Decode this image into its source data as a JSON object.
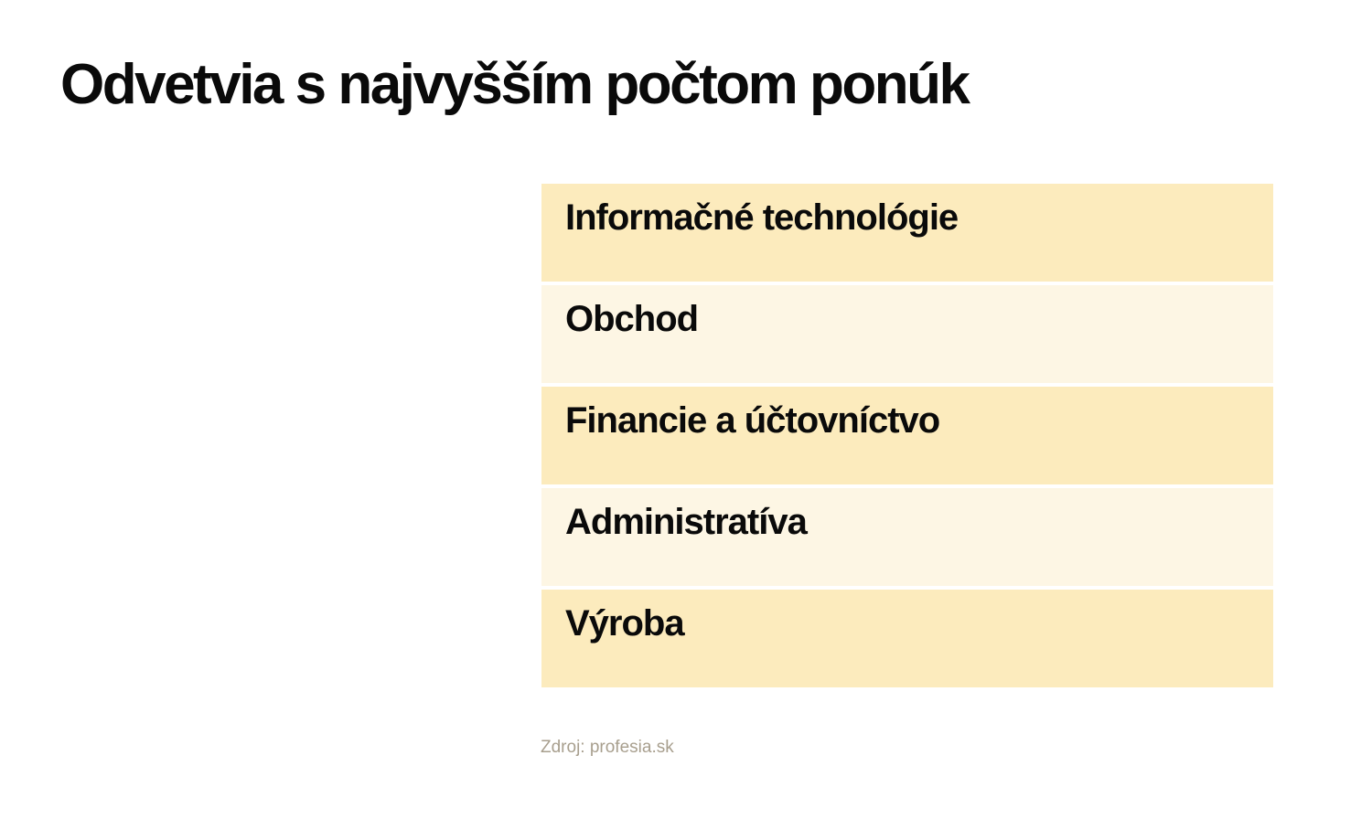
{
  "slide": {
    "title": "Odvetvia s najvyšším počtom ponúk",
    "source": "Zdroj: profesia.sk"
  },
  "table": {
    "rows": [
      {
        "label": "Informačné technológie"
      },
      {
        "label": "Obchod"
      },
      {
        "label": "Financie a účtovníctvo"
      },
      {
        "label": "Administratíva"
      },
      {
        "label": "Výroba"
      }
    ],
    "colors": {
      "row_odd": "#FCEBBD",
      "row_even": "#FDF6E4",
      "row_gap": "#FFFFFF",
      "text": "#0A0A0A",
      "title_text": "#0A0A0A",
      "source_text": "#A89F8E",
      "background": "#FFFFFF"
    }
  },
  "chart_data": {
    "type": "table",
    "title": "Odvetvia s najvyšším počtom ponúk",
    "categories": [
      "Informačné technológie",
      "Obchod",
      "Financie a účtovníctvo",
      "Administratíva",
      "Výroba"
    ],
    "values": [],
    "source": "Zdroj: profesia.sk",
    "layout_hints": {
      "style": "single-column ranked list, rank order top to bottom",
      "row_shading": "alternating dark/light cream",
      "grid": "off",
      "legend": "none"
    }
  }
}
